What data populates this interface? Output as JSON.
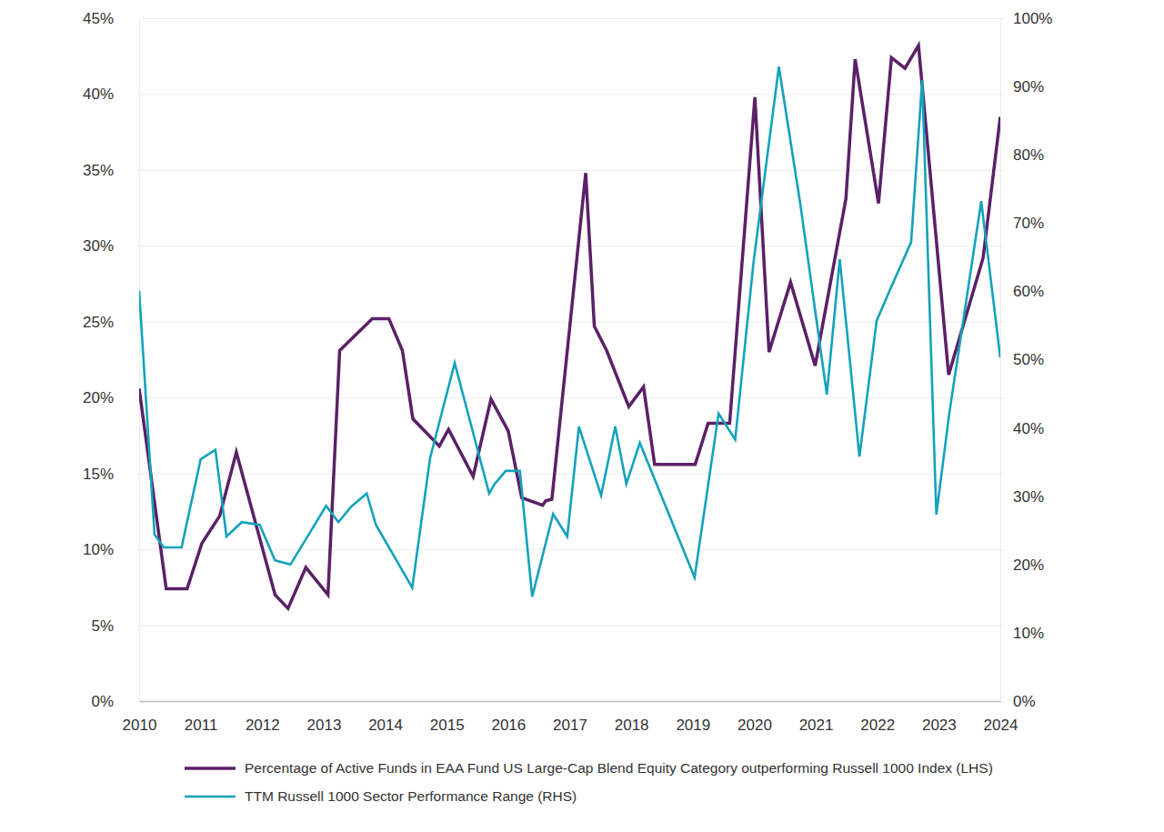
{
  "chart_data": {
    "type": "line",
    "xlim": [
      2010,
      2024
    ],
    "xticks": [
      2010,
      2011,
      2012,
      2013,
      2014,
      2015,
      2016,
      2017,
      2018,
      2019,
      2020,
      2021,
      2022,
      2023,
      2024
    ],
    "ylim": [
      0,
      45
    ],
    "yticks": [
      {
        "value": 0,
        "label": "0%"
      },
      {
        "value": 5,
        "label": "5%"
      },
      {
        "value": 10,
        "label": "10%"
      },
      {
        "value": 15,
        "label": "15%"
      },
      {
        "value": 20,
        "label": "20%"
      },
      {
        "value": 25,
        "label": "25%"
      },
      {
        "value": 30,
        "label": "30%"
      },
      {
        "value": 35,
        "label": "35%"
      },
      {
        "value": 40,
        "label": "40%"
      },
      {
        "value": 45,
        "label": "45%"
      }
    ],
    "y2lim": [
      0,
      100
    ],
    "y2ticks": [
      {
        "value": 0,
        "label": "0%"
      },
      {
        "value": 10,
        "label": "10%"
      },
      {
        "value": 20,
        "label": "20%"
      },
      {
        "value": 30,
        "label": "30%"
      },
      {
        "value": 40,
        "label": "40%"
      },
      {
        "value": 50,
        "label": "50%"
      },
      {
        "value": 60,
        "label": "60%"
      },
      {
        "value": 70,
        "label": "70%"
      },
      {
        "value": 80,
        "label": "80%"
      },
      {
        "value": 90,
        "label": "90%"
      },
      {
        "value": 100,
        "label": "100%"
      }
    ],
    "grid": true,
    "legend": "bottom",
    "series": [
      {
        "name": "Percentage of Active Funds in EAA Fund US Large-Cap Blend Equity Category outperforming Russell 1000 Index (LHS)",
        "color": "#5b2068",
        "x": [
          2010.0,
          2010.44,
          2010.78,
          2011.02,
          2011.31,
          2011.58,
          2012.21,
          2012.42,
          2012.71,
          2013.07,
          2013.26,
          2013.79,
          2014.06,
          2014.28,
          2014.45,
          2014.88,
          2015.03,
          2015.43,
          2015.72,
          2016.0,
          2016.22,
          2016.56,
          2016.61,
          2016.71,
          2017.26,
          2017.4,
          2017.6,
          2017.96,
          2018.2,
          2018.38,
          2019.04,
          2019.25,
          2019.6,
          2020.01,
          2020.24,
          2020.59,
          2020.99,
          2021.49,
          2021.64,
          2022.02,
          2022.23,
          2022.45,
          2022.67,
          2023.16,
          2023.72,
          2024.0
        ],
        "values": [
          20.6,
          7.4,
          7.4,
          10.4,
          12.2,
          16.4,
          7.0,
          6.1,
          8.8,
          7.0,
          23.1,
          25.2,
          25.2,
          23.1,
          18.6,
          16.8,
          17.9,
          14.8,
          19.9,
          17.8,
          13.4,
          12.9,
          13.2,
          13.3,
          34.8,
          24.7,
          23.1,
          19.4,
          20.7,
          15.6,
          15.6,
          18.3,
          18.3,
          39.8,
          23.0,
          27.6,
          22.1,
          33.1,
          42.3,
          32.8,
          42.4,
          41.7,
          43.2,
          21.5,
          29.2,
          38.5
        ]
      },
      {
        "name": "TTM Russell 1000 Sector Performance Range (RHS)",
        "color": "#14a2bb",
        "axis": "y2",
        "x": [
          2010.0,
          2010.25,
          2010.4,
          2010.69,
          2011.0,
          2011.24,
          2011.42,
          2011.67,
          2011.96,
          2012.21,
          2012.46,
          2013.04,
          2013.24,
          2013.45,
          2013.7,
          2013.85,
          2014.44,
          2014.73,
          2015.13,
          2015.69,
          2015.78,
          2015.96,
          2016.19,
          2016.39,
          2016.73,
          2016.96,
          2017.15,
          2017.51,
          2017.74,
          2017.92,
          2018.14,
          2019.03,
          2019.42,
          2019.69,
          2019.99,
          2020.4,
          2020.75,
          2021.18,
          2021.39,
          2021.71,
          2021.99,
          2022.2,
          2022.55,
          2022.73,
          2022.96,
          2023.17,
          2023.69,
          2024.0
        ],
        "values": [
          60.1,
          24.4,
          22.5,
          22.5,
          35.4,
          36.8,
          24.1,
          26.2,
          25.8,
          20.6,
          20.0,
          28.6,
          26.2,
          28.5,
          30.4,
          25.8,
          16.6,
          35.6,
          49.5,
          30.4,
          31.8,
          33.7,
          33.7,
          15.3,
          27.4,
          24.1,
          40.2,
          30.1,
          40.2,
          31.8,
          37.8,
          18.1,
          42.1,
          38.3,
          64.4,
          92.9,
          72.7,
          44.9,
          64.7,
          35.8,
          55.7,
          60.1,
          67.2,
          90.9,
          27.3,
          42.1,
          73.2,
          50.3
        ]
      }
    ]
  }
}
